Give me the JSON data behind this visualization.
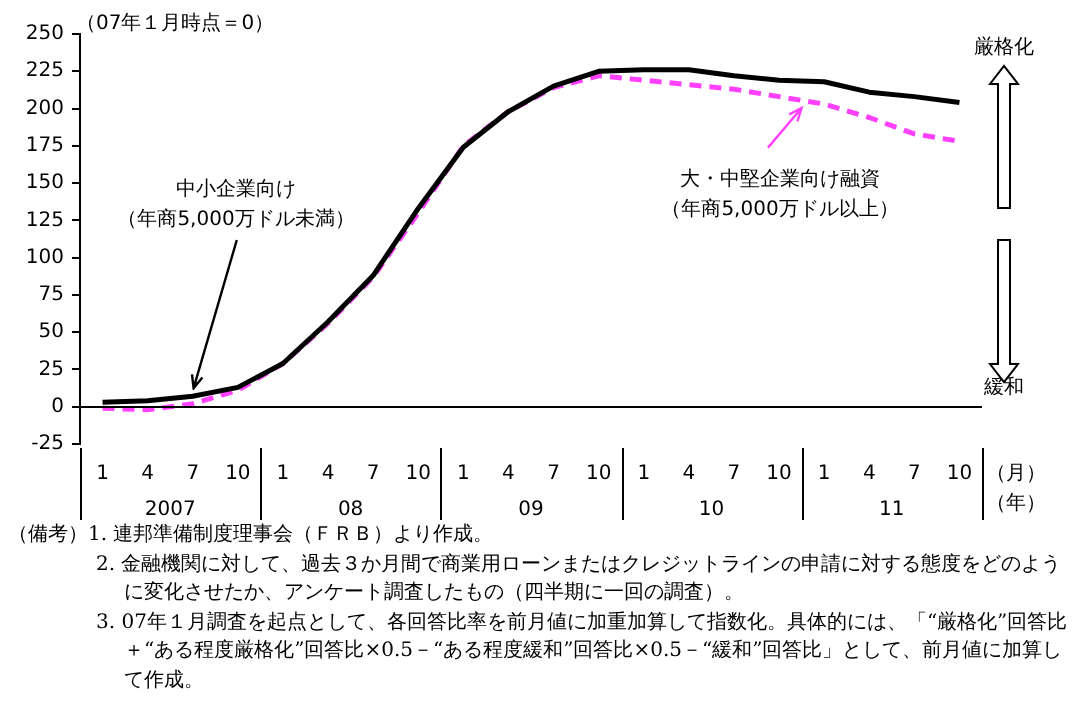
{
  "chart_data": {
    "type": "line",
    "ylabel": "（07年１月時点＝0）",
    "categories": [
      "1",
      "4",
      "7",
      "10",
      "1",
      "4",
      "7",
      "10",
      "1",
      "4",
      "7",
      "10",
      "1",
      "4",
      "7",
      "10",
      "1",
      "4",
      "7",
      "10"
    ],
    "series": [
      {
        "name": "中小企業向け（年商5,000万ドル未満）",
        "color": "#000000",
        "line_style": "solid",
        "values": [
          3,
          4,
          7,
          13,
          29,
          57,
          88,
          133,
          174,
          198,
          215,
          225,
          226,
          226,
          222,
          219,
          218,
          211,
          208,
          204
        ]
      },
      {
        "name": "大・中堅企業向け融資（年商5,000万ドル以上）",
        "color": "#ff40ff",
        "line_style": "dashed",
        "values": [
          -1,
          -2,
          2,
          11,
          29,
          56,
          87,
          130,
          175,
          198,
          214,
          222,
          219,
          216,
          213,
          208,
          203,
          194,
          183,
          178
        ]
      }
    ],
    "ylim": [
      -25,
      250
    ],
    "yticks": [
      -25,
      0,
      25,
      50,
      75,
      100,
      125,
      150,
      175,
      200,
      225,
      250
    ],
    "ref_lines": [
      {
        "axis": "y",
        "value": 0,
        "color": "#000000"
      }
    ],
    "grid": false,
    "marker": "none",
    "annotations": [
      "2007",
      "08",
      "09",
      "10",
      "11",
      "（月）",
      "（年）",
      "厳格化",
      "緩和",
      "（備考）1. 連邦準備制度理事会（ＦＲＢ）より作成。",
      "2. 金融機関に対して、過去３か月間で商業用ローンまたはクレジットラインの申請に対する態度をどのように変化させたか、アンケート調査したもの（四半期に一回の調査）。",
      "3. 07年１月調査を起点として、各回答比率を前月値に加重加算して指数化。具体的には、「“厳格化”回答比＋“ある程度厳格化”回答比×0.5－“ある程度緩和”回答比×0.5－“緩和”回答比」として、前月値に加算して作成。"
    ]
  }
}
